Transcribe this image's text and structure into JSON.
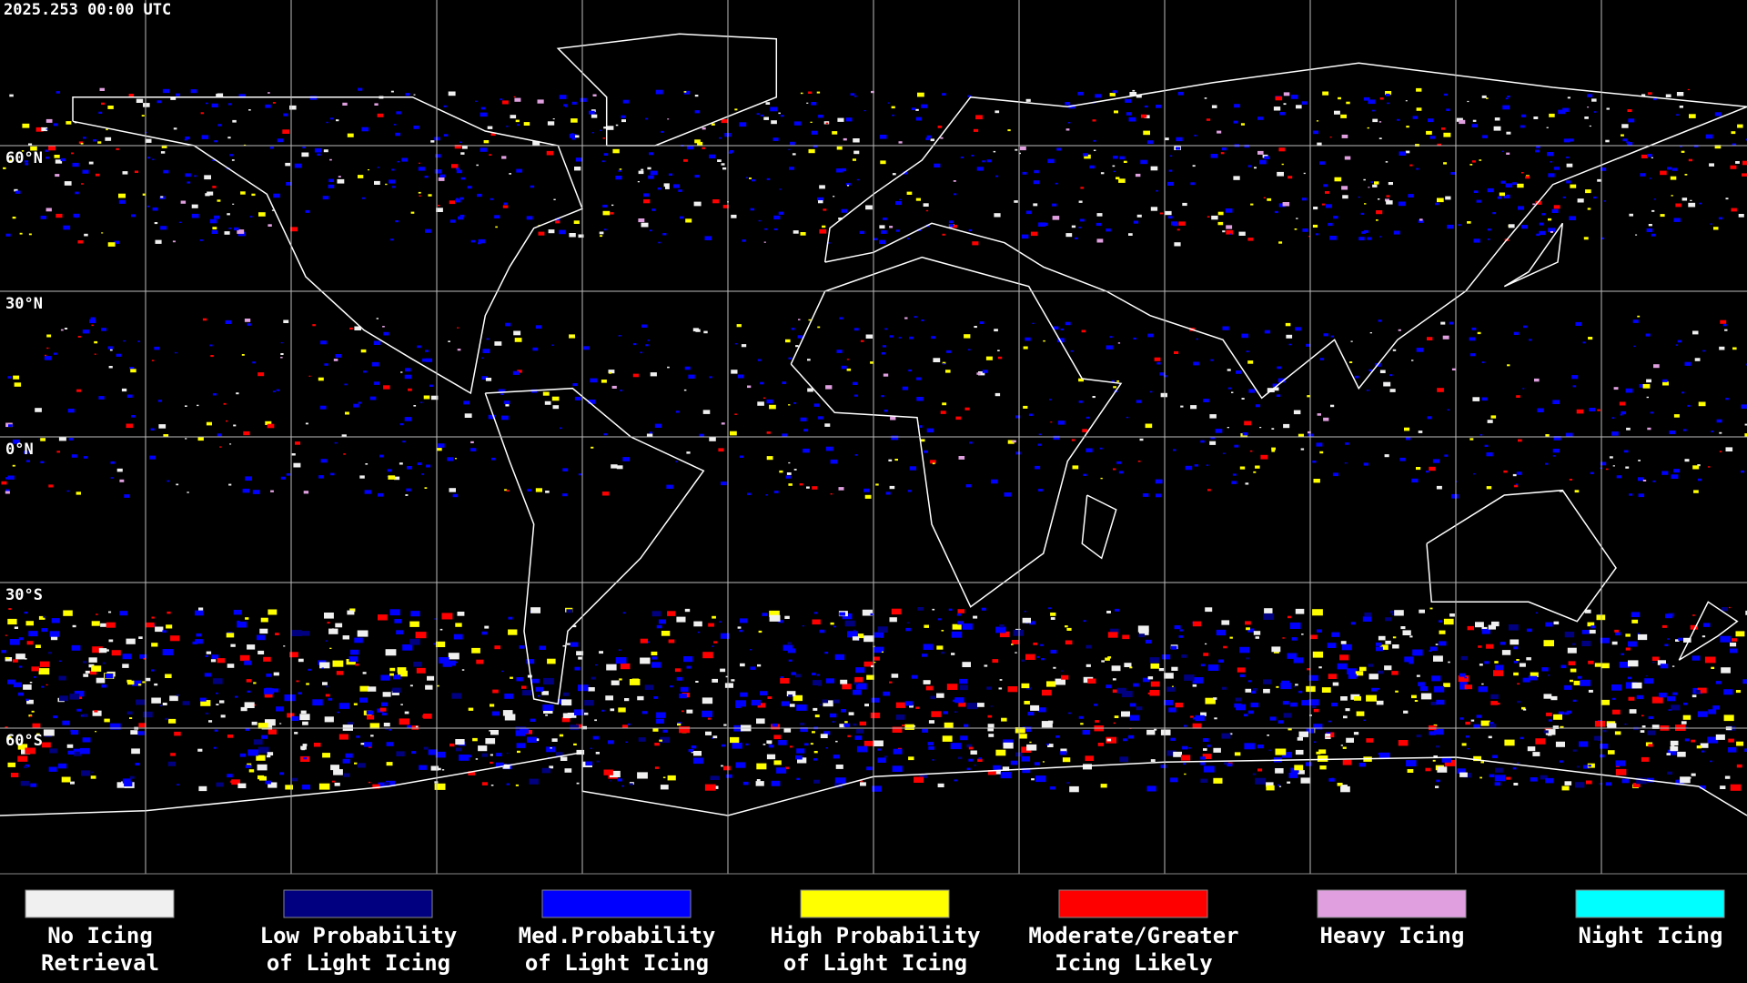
{
  "timestamp": "2025.253 00:00 UTC",
  "lat_labels": [
    "60°N",
    "30°N",
    "0°N",
    "30°S",
    "60°S"
  ],
  "legend": [
    {
      "lines": [
        "No Icing",
        "Retrieval"
      ],
      "color": "#f0f0f0"
    },
    {
      "lines": [
        "Low Probability",
        "of Light Icing"
      ],
      "color": "#000080"
    },
    {
      "lines": [
        "Med.Probability",
        "of Light Icing"
      ],
      "color": "#0000ff"
    },
    {
      "lines": [
        "High Probability",
        "of Light Icing"
      ],
      "color": "#ffff00"
    },
    {
      "lines": [
        "Moderate/Greater",
        "Icing Likely"
      ],
      "color": "#ff0000"
    },
    {
      "lines": [
        "Heavy Icing"
      ],
      "color": "#e0a0e0"
    },
    {
      "lines": [
        "Night Icing"
      ],
      "color": "#00ffff"
    }
  ]
}
